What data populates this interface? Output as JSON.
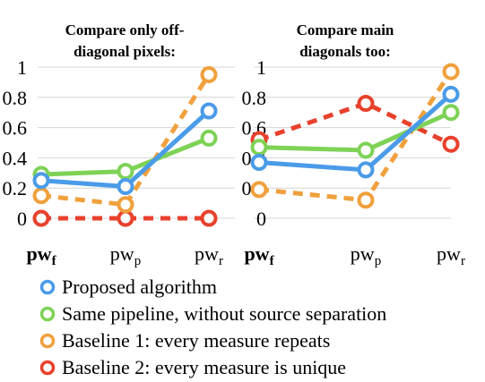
{
  "chart_data": [
    {
      "type": "line",
      "title": [
        "Compare only off-",
        "diagonal pixels:"
      ],
      "categories": [
        {
          "base": "pw",
          "sub": "f",
          "bold": true
        },
        {
          "base": "pw",
          "sub": "p",
          "bold": false
        },
        {
          "base": "pw",
          "sub": "r",
          "bold": false
        }
      ],
      "ylim": [
        0,
        1
      ],
      "yticks": [
        "0",
        "0.2",
        "0.4",
        "0.6",
        "0.8",
        "1"
      ],
      "grid": true,
      "series": [
        {
          "key": "proposed",
          "values": [
            0.25,
            0.21,
            0.71
          ],
          "color": "#4a9be8",
          "dashed": false
        },
        {
          "key": "same",
          "values": [
            0.29,
            0.31,
            0.53
          ],
          "color": "#7ed256",
          "dashed": false
        },
        {
          "key": "baseline1",
          "values": [
            0.15,
            0.09,
            0.95
          ],
          "color": "#f0a03c",
          "dashed": true
        },
        {
          "key": "baseline2",
          "values": [
            0.0,
            0.0,
            0.0
          ],
          "color": "#e8412c",
          "dashed": true
        }
      ]
    },
    {
      "type": "line",
      "title": [
        "Compare main",
        "diagonals too:"
      ],
      "categories": [
        {
          "base": "pw",
          "sub": "f",
          "bold": true
        },
        {
          "base": "pw",
          "sub": "p",
          "bold": false
        },
        {
          "base": "pw",
          "sub": "r",
          "bold": false
        }
      ],
      "ylim": [
        0,
        1
      ],
      "yticks": [
        "0",
        "0.2",
        "0.4",
        "0.6",
        "0.8",
        "1"
      ],
      "grid": true,
      "series": [
        {
          "key": "proposed",
          "values": [
            0.37,
            0.32,
            0.82
          ],
          "color": "#4a9be8",
          "dashed": false
        },
        {
          "key": "same",
          "values": [
            0.47,
            0.45,
            0.7
          ],
          "color": "#7ed256",
          "dashed": false
        },
        {
          "key": "baseline1",
          "values": [
            0.19,
            0.12,
            0.97
          ],
          "color": "#f0a03c",
          "dashed": true
        },
        {
          "key": "baseline2",
          "values": [
            0.52,
            0.76,
            0.49
          ],
          "color": "#e8412c",
          "dashed": true
        }
      ]
    }
  ],
  "legend": {
    "position": "bottom",
    "items": [
      {
        "key": "proposed",
        "label": "Proposed algorithm",
        "color": "#4a9be8"
      },
      {
        "key": "same",
        "label": "Same pipeline, without source separation",
        "color": "#7ed256"
      },
      {
        "key": "baseline1",
        "label": "Baseline 1: every measure repeats",
        "color": "#f0a03c"
      },
      {
        "key": "baseline2",
        "label": "Baseline 2: every measure is unique",
        "color": "#e8412c"
      }
    ]
  }
}
